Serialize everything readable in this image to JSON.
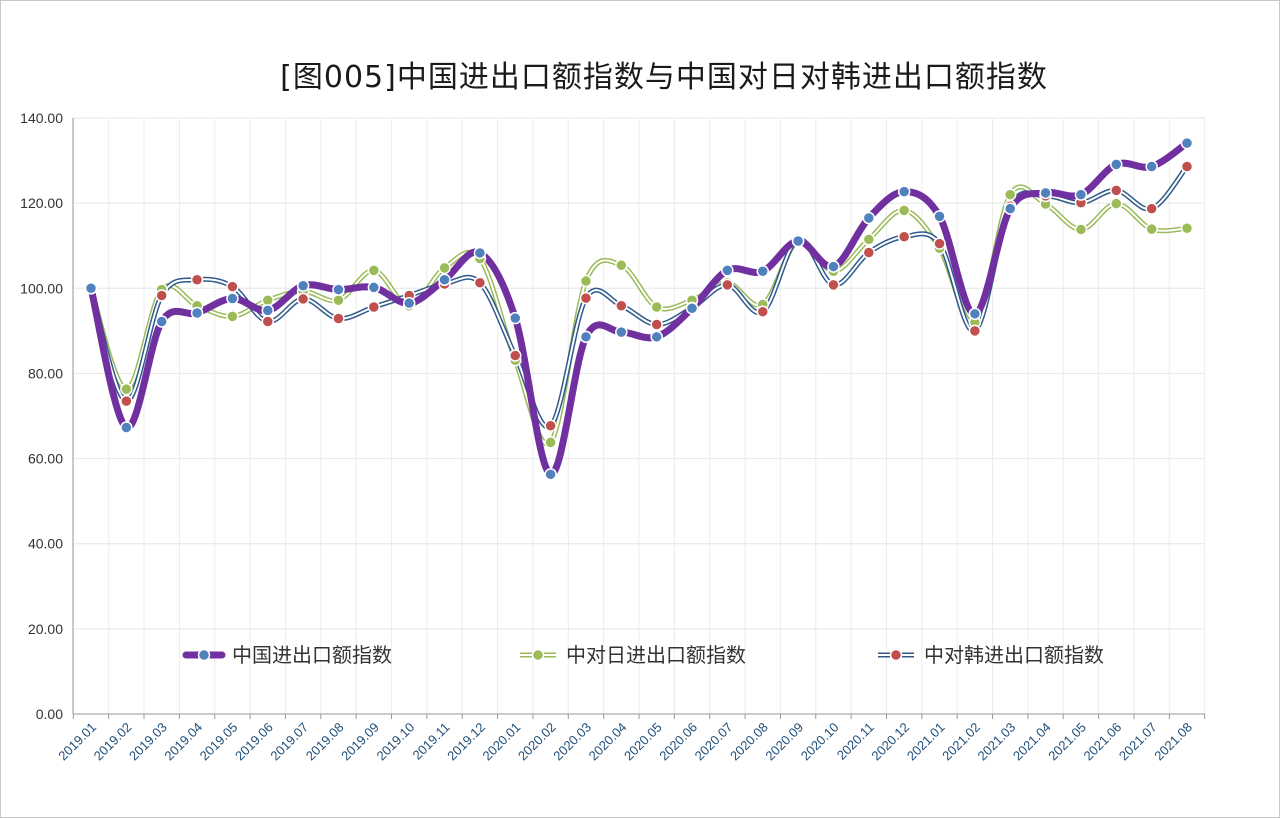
{
  "chart_data": {
    "type": "line",
    "title": "[图005]中国进出口额指数与中国对日对韩进出口额指数",
    "xlabel": "",
    "ylabel": "",
    "ylim": [
      0,
      140
    ],
    "yticks": [
      "0.00",
      "20.00",
      "40.00",
      "60.00",
      "80.00",
      "100.00",
      "120.00",
      "140.00"
    ],
    "grid": true,
    "legend_position": "lower-center",
    "categories": [
      "2019.01",
      "2019.02",
      "2019.03",
      "2019.04",
      "2019.05",
      "2019.06",
      "2019.07",
      "2019.08",
      "2019.09",
      "2019.10",
      "2019.11",
      "2019.12",
      "2020.01",
      "2020.02",
      "2020.03",
      "2020.04",
      "2020.05",
      "2020.06",
      "2020.07",
      "2020.08",
      "2020.09",
      "2020.10",
      "2020.11",
      "2020.12",
      "2021.01",
      "2021.02",
      "2021.03",
      "2021.04",
      "2021.05",
      "2021.06",
      "2021.07",
      "2021.08"
    ],
    "series": [
      {
        "name": "中国进出口额指数",
        "color": "#7030a0",
        "marker_color": "#4f81bd",
        "values": [
          100.0,
          67.3,
          92.2,
          94.2,
          97.6,
          94.8,
          100.6,
          99.7,
          100.2,
          96.5,
          102.0,
          108.3,
          93.0,
          56.3,
          88.6,
          89.7,
          88.6,
          95.3,
          104.2,
          104.0,
          111.1,
          105.1,
          116.5,
          122.7,
          116.9,
          94.0,
          118.7,
          122.4,
          122.0,
          129.1,
          128.6,
          134.1
        ]
      },
      {
        "name": "中对日进出口额指数",
        "color": "#9bbb59",
        "marker_color": "#9bbb59",
        "values": [
          100.0,
          76.3,
          99.7,
          95.9,
          93.4,
          97.2,
          99.3,
          97.2,
          104.2,
          95.9,
          104.8,
          107.0,
          83.1,
          63.8,
          101.7,
          105.4,
          95.6,
          97.2,
          101.3,
          96.2,
          111.1,
          104.0,
          111.5,
          118.3,
          109.4,
          92.0,
          122.0,
          119.8,
          113.8,
          119.9,
          113.9,
          114.1
        ]
      },
      {
        "name": "中对韩进出口额指数",
        "color": "#2f5a8a",
        "marker_color": "#c0504d",
        "values": [
          100.0,
          73.5,
          98.3,
          102.0,
          100.4,
          92.2,
          97.5,
          92.9,
          95.6,
          98.3,
          101.0,
          101.3,
          84.2,
          67.7,
          97.7,
          95.9,
          91.5,
          95.4,
          100.8,
          94.5,
          111.5,
          100.8,
          108.4,
          112.1,
          110.5,
          90.0,
          119.3,
          121.7,
          120.1,
          123.0,
          118.7,
          128.6
        ]
      }
    ]
  }
}
